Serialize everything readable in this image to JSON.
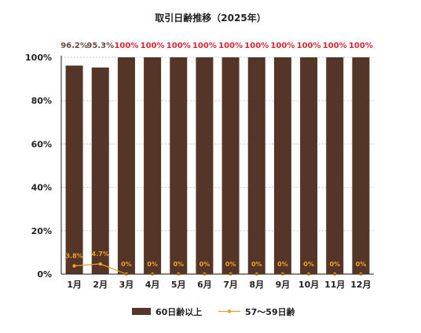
{
  "chart_data": {
    "type": "bar",
    "title": "取引日齢推移（2025年）",
    "categories": [
      "1月",
      "2月",
      "3月",
      "4月",
      "5月",
      "6月",
      "7月",
      "8月",
      "9月",
      "10月",
      "11月",
      "12月"
    ],
    "ylim": [
      0,
      100
    ],
    "yticks": [
      "0%",
      "20%",
      "40%",
      "60%",
      "80%",
      "100%"
    ],
    "grid": true,
    "legend_position": "bottom",
    "series": [
      {
        "name": "60日齢以上",
        "kind": "bar",
        "color": "#553528",
        "values": [
          96.2,
          95.3,
          100,
          100,
          100,
          100,
          100,
          100,
          100,
          100,
          100,
          100
        ],
        "labels": [
          "96.2%",
          "95.3%",
          "100%",
          "100%",
          "100%",
          "100%",
          "100%",
          "100%",
          "100%",
          "100%",
          "100%",
          "100%"
        ],
        "label_colors": [
          "#6b4a3a",
          "#6b4a3a",
          "#d9232e",
          "#d9232e",
          "#d9232e",
          "#d9232e",
          "#d9232e",
          "#d9232e",
          "#d9232e",
          "#d9232e",
          "#d9232e",
          "#d9232e"
        ]
      },
      {
        "name": "57〜59日齢",
        "kind": "line",
        "color": "#f0a020",
        "values": [
          3.8,
          4.7,
          0,
          0,
          0,
          0,
          0,
          0,
          0,
          0,
          0,
          0
        ],
        "labels": [
          "3.8%",
          "4.7%",
          "0%",
          "0%",
          "0%",
          "0%",
          "0%",
          "0%",
          "0%",
          "0%",
          "0%",
          "0%"
        ]
      }
    ]
  }
}
